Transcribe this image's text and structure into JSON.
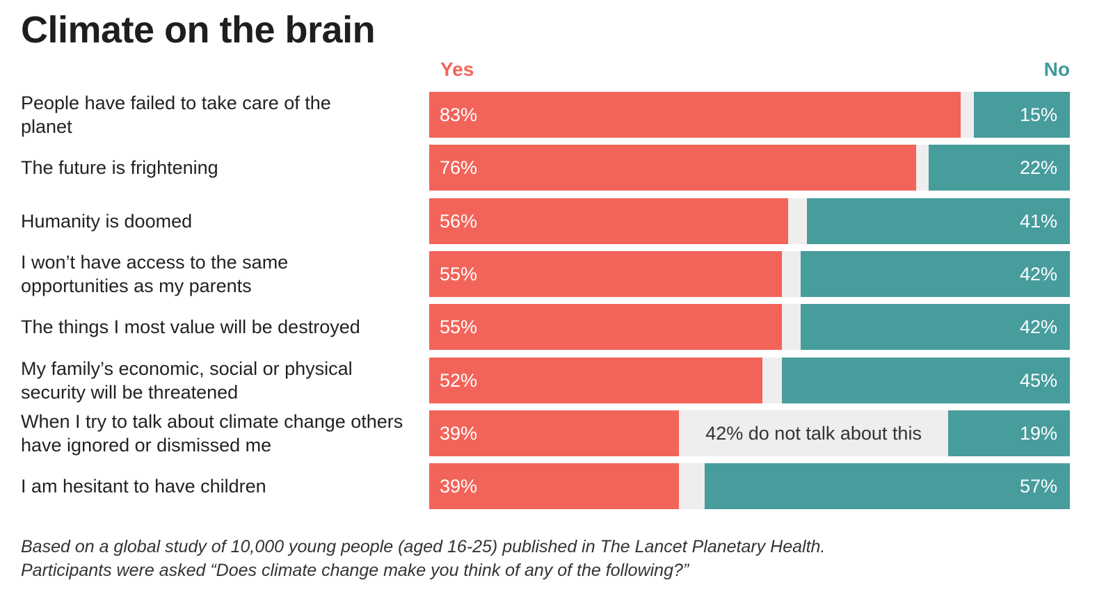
{
  "chart_data": {
    "type": "bar",
    "stacked": true,
    "orientation": "horizontal",
    "title": "Climate on the brain",
    "legend": [
      "Yes",
      "No"
    ],
    "legend_position": "top",
    "colors": {
      "yes": "#f2645a",
      "no": "#479c9c",
      "gap": "#efeded"
    },
    "categories": [
      "People have failed to take care of the planet",
      "The future is frightening",
      "Humanity is doomed",
      "I won’t have access to the same opportunities as my parents",
      "The things I most value will be destroyed",
      "My family’s economic, social or physical security will be threatened",
      "When I try to talk about climate change others have ignored or dismissed me",
      "I am hesitant to have children"
    ],
    "series": [
      {
        "name": "Yes",
        "values": [
          83,
          76,
          56,
          55,
          55,
          52,
          39,
          39
        ]
      },
      {
        "name": "No",
        "values": [
          15,
          22,
          41,
          42,
          42,
          45,
          19,
          57
        ]
      }
    ],
    "annotations": [
      {
        "row": 6,
        "text": "42% do not talk about this"
      }
    ],
    "xlim": [
      0,
      100
    ]
  },
  "footnote": [
    "Based on a global study of 10,000 young people (aged 16-25) published in The Lancet Planetary Health.",
    "Participants were asked “Does climate change make you think of any of the following?”"
  ]
}
